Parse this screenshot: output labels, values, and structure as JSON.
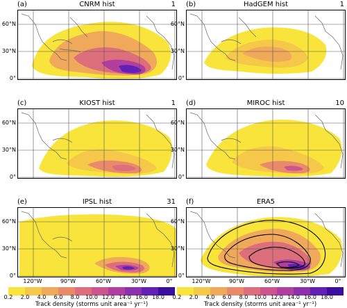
{
  "panels": [
    {
      "letter": "(a)",
      "title": "CNRM hist",
      "count": "1"
    },
    {
      "letter": "(b)",
      "title": "HadGEM hist",
      "count": "1"
    },
    {
      "letter": "(c)",
      "title": "KIOST hist",
      "count": "1"
    },
    {
      "letter": "(d)",
      "title": "MIROC hist",
      "count": "10"
    },
    {
      "letter": "(e)",
      "title": "IPSL hist",
      "count": "31"
    },
    {
      "letter": "(f)",
      "title": "ERA5",
      "count": ""
    }
  ],
  "axes": {
    "y_ticks": [
      "60°N",
      "30°N",
      "0°"
    ],
    "x_ticks": [
      "120°W",
      "90°W",
      "60°W",
      "30°W",
      "0°"
    ]
  },
  "colorbar": {
    "ticks": [
      "0.2",
      "2.0",
      "4.0",
      "6.0",
      "8.0",
      "10.0",
      "12.0",
      "14.0",
      "16.0",
      "18.0"
    ],
    "label": "Track density (storms unit area⁻¹ yr⁻¹)",
    "colors": [
      "#f8e43a",
      "#f5c84a",
      "#f0a85a",
      "#e98b6a",
      "#dd6f7c",
      "#cc558e",
      "#b13f9f",
      "#8e2fae",
      "#6320b5",
      "#3a0fa0"
    ]
  },
  "chart_data": {
    "type": "heatmap",
    "xlabel": "",
    "ylabel": "",
    "x_ticks": [
      "120°W",
      "90°W",
      "60°W",
      "30°W",
      "0°"
    ],
    "y_ticks": [
      "0°",
      "30°N",
      "60°N"
    ],
    "xlim": [
      -130,
      10
    ],
    "ylim": [
      -5,
      70
    ],
    "colorbar_levels": [
      0.2,
      2.0,
      4.0,
      6.0,
      8.0,
      10.0,
      12.0,
      14.0,
      16.0,
      18.0
    ],
    "colorbar_label": "Track density (storms unit area⁻¹ yr⁻¹)",
    "panels": [
      {
        "title": "CNRM hist",
        "count": 1,
        "max_density": 18,
        "max_lon": -30,
        "max_lat": 12
      },
      {
        "title": "HadGEM hist",
        "count": 1,
        "max_density": 6,
        "max_lon": -50,
        "max_lat": 25
      },
      {
        "title": "KIOST hist",
        "count": 1,
        "max_density": 12,
        "max_lon": -35,
        "max_lat": 12
      },
      {
        "title": "MIROC hist",
        "count": 10,
        "max_density": 12,
        "max_lon": -35,
        "max_lat": 12
      },
      {
        "title": "IPSL hist",
        "count": 31,
        "max_density": 18,
        "max_lon": -30,
        "max_lat": 12
      },
      {
        "title": "ERA5",
        "count": null,
        "max_density": 14,
        "max_lon": -40,
        "max_lat": 15
      }
    ]
  }
}
